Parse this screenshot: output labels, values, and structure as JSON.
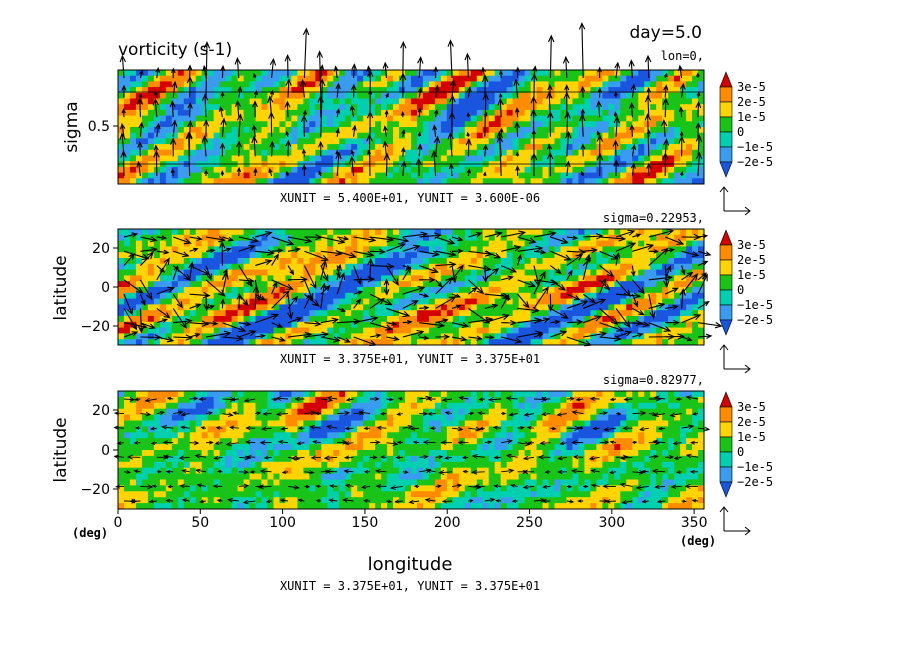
{
  "chart_data": {
    "type": "heatmap",
    "title": "vorticity (s-1)",
    "time_label": "day=5.0",
    "colorbar": {
      "ticks": [
        "3e-5",
        "2e-5",
        "1e-5",
        "0",
        "−1e-5",
        "−2e-5"
      ],
      "colors": [
        "#d40000",
        "#ff8c00",
        "#ffd400",
        "#18c418",
        "#00d0b0",
        "#3a9cf0",
        "#1a55e0"
      ]
    },
    "xlabel": "longitude",
    "xunits": "(deg)",
    "xticks": [
      "0",
      "50",
      "100",
      "150",
      "200",
      "250",
      "300",
      "350"
    ],
    "xlim": [
      0,
      356
    ],
    "panels": [
      {
        "id": "top",
        "slice_label": "lon=0,",
        "ylabel": "sigma",
        "yticks": [
          "0.5"
        ],
        "ylim": [
          0,
          1
        ],
        "unit_label": "XUNIT = 5.400E+01, YUNIT = 3.600E-06",
        "amplitude": 1.4,
        "vectors": "vertical"
      },
      {
        "id": "middle",
        "slice_label": "sigma=0.22953,",
        "ylabel": "latitude",
        "yticks": [
          "20",
          "0",
          "−20"
        ],
        "ylim": [
          -30,
          30
        ],
        "unit_label": "XUNIT = 3.375E+01, YUNIT = 3.375E+01",
        "amplitude": 1.3,
        "vectors": "horizontal-strong"
      },
      {
        "id": "bottom",
        "slice_label": "sigma=0.82977,",
        "ylabel": "latitude",
        "yticks": [
          "20",
          "0",
          "−20"
        ],
        "ylim": [
          -30,
          30
        ],
        "unit_label": "XUNIT = 3.375E+01, YUNIT = 3.375E+01",
        "amplitude": 0.85,
        "vectors": "horizontal-weak"
      }
    ]
  }
}
